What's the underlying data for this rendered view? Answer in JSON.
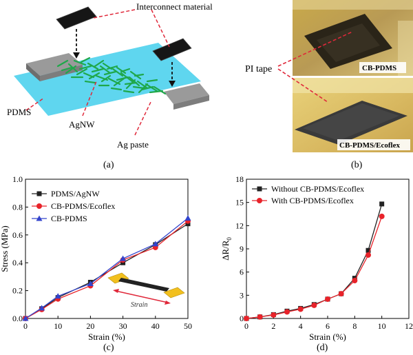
{
  "figure": {
    "panels": {
      "a": {
        "caption": "(a)",
        "labels": {
          "interconnect": "Interconnect material",
          "pdms": "PDMS",
          "agnw": "AgNW",
          "ag_paste": "Ag paste"
        }
      },
      "b": {
        "caption": "(b)",
        "labels": {
          "pi_tape": "PI tape",
          "photo_top": "CB-PDMS",
          "photo_bottom": "CB-PDMS/Ecoflex"
        }
      },
      "c": {
        "caption": "(c)",
        "inset_label": "Strain"
      },
      "d": {
        "caption": "(d)"
      }
    },
    "colors": {
      "black_series": "#222222",
      "red_series": "#e8232a",
      "blue_series": "#3344cc",
      "substrate": "#5fd6ef",
      "nanowire": "#1fa84a",
      "paste": "#8a8a8a",
      "inset_pad": "#f2c01e"
    }
  },
  "chart_data": [
    {
      "id": "c",
      "type": "line",
      "title": "",
      "xlabel": "Strain (%)",
      "ylabel": "Stress (MPa)",
      "xlim": [
        0,
        50
      ],
      "ylim": [
        0,
        1.0
      ],
      "xticks": [
        0,
        10,
        20,
        30,
        40,
        50
      ],
      "yticks": [
        0.0,
        0.2,
        0.4,
        0.6,
        0.8,
        1.0
      ],
      "ytick_labels": [
        "0.0",
        "0.2",
        "0.4",
        "0.6",
        "0.8",
        "1.0"
      ],
      "legend_position": "top-left",
      "series": [
        {
          "name": "PDMS/AgNW",
          "marker": "square",
          "color": "#222222",
          "x": [
            0,
            5,
            10,
            20,
            30,
            40,
            50
          ],
          "y": [
            0,
            0.07,
            0.15,
            0.26,
            0.4,
            0.53,
            0.68
          ]
        },
        {
          "name": "CB-PDMS/Ecoflex",
          "marker": "circle",
          "color": "#e8232a",
          "x": [
            0,
            5,
            10,
            20,
            30,
            40,
            50
          ],
          "y": [
            0,
            0.065,
            0.14,
            0.235,
            0.42,
            0.51,
            0.7
          ]
        },
        {
          "name": "CB-PDMS",
          "marker": "triangle",
          "color": "#3344cc",
          "x": [
            0,
            5,
            10,
            20,
            30,
            40,
            50
          ],
          "y": [
            0,
            0.075,
            0.16,
            0.25,
            0.43,
            0.535,
            0.72
          ]
        }
      ]
    },
    {
      "id": "d",
      "type": "line",
      "title": "",
      "xlabel": "Strain (%)",
      "ylabel": "ΔR/R",
      "ylabel_sub": "0",
      "xlim": [
        0,
        12
      ],
      "ylim": [
        0,
        18
      ],
      "xticks": [
        0,
        2,
        4,
        6,
        8,
        10,
        12
      ],
      "yticks": [
        0,
        3,
        6,
        9,
        12,
        15,
        18
      ],
      "legend_position": "top-left",
      "series": [
        {
          "name": "Without CB-PDMS/Ecoflex",
          "marker": "square",
          "color": "#222222",
          "x": [
            0,
            1,
            2,
            3,
            4,
            5,
            6,
            7,
            8,
            9,
            10
          ],
          "y": [
            0,
            0.2,
            0.5,
            0.95,
            1.3,
            1.8,
            2.5,
            3.2,
            5.2,
            8.8,
            14.8
          ]
        },
        {
          "name": "With CB-PDMS/Ecoflex",
          "marker": "circle",
          "color": "#e8232a",
          "x": [
            0,
            1,
            2,
            3,
            4,
            5,
            6,
            7,
            8,
            9,
            10
          ],
          "y": [
            0,
            0.2,
            0.45,
            0.85,
            1.2,
            1.7,
            2.5,
            3.2,
            4.9,
            8.2,
            13.2
          ]
        }
      ]
    }
  ]
}
